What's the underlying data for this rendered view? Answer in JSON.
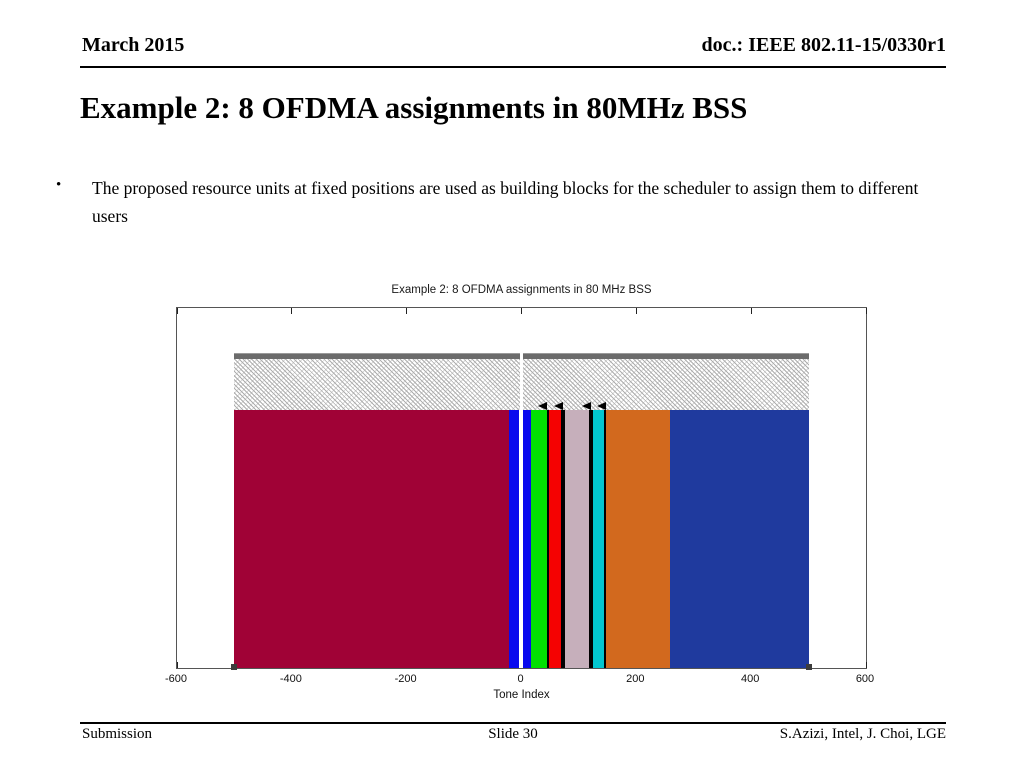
{
  "header": {
    "date": "March 2015",
    "doc": "doc.: IEEE 802.11-15/0330r1"
  },
  "slide_title": "Example 2: 8 OFDMA assignments in 80MHz BSS",
  "bullet": {
    "marker": "•",
    "text": "The proposed resource units at fixed positions are used as building blocks for the scheduler to assign them to different users"
  },
  "footer": {
    "left": "Submission",
    "center": "Slide 30",
    "right": "S.Azizi, Intel, J. Choi, LGE"
  },
  "chart_data": {
    "type": "bar",
    "title": "Example 2: 8 OFDMA assignments in 80 MHz BSS",
    "xlabel": "Tone Index",
    "xlim": [
      -600,
      600
    ],
    "xticks": [
      -600,
      -400,
      -200,
      0,
      200,
      400,
      600
    ],
    "band": {
      "start": -500,
      "end": 500
    },
    "dc_gap_tone": 0,
    "segments": [
      {
        "name": "assignment-1",
        "color": "#A00236",
        "start": -500,
        "end": -22,
        "black_border": false
      },
      {
        "name": "assignment-2a",
        "color": "#0909EE",
        "start": -22,
        "end": -4,
        "black_border": false
      },
      {
        "name": "assignment-2b",
        "color": "#0909EE",
        "start": 2,
        "end": 16,
        "black_border": false
      },
      {
        "name": "assignment-3",
        "color": "#02E002",
        "start": 16,
        "end": 45,
        "black_border": false
      },
      {
        "name": "assignment-4",
        "color": "#F50202",
        "start": 45,
        "end": 73,
        "black_border": true
      },
      {
        "name": "assignment-5",
        "color": "#C6AFBB",
        "start": 73,
        "end": 121,
        "black_border": true
      },
      {
        "name": "assignment-6",
        "color": "#02C6CF",
        "start": 121,
        "end": 147,
        "black_border": true
      },
      {
        "name": "assignment-7",
        "color": "#D2691E",
        "start": 147,
        "end": 258,
        "black_border": false
      },
      {
        "name": "assignment-8",
        "color": "#1F3A9E",
        "start": 258,
        "end": 500,
        "black_border": false
      }
    ],
    "arrow_tones": [
      45,
      73,
      121,
      147
    ],
    "cap_bar_color": "#6b6b6b",
    "hatch_region": {
      "start": -500,
      "end": 500,
      "style": "diagonal-hatch"
    },
    "baseline_marker_tones": [
      -500,
      500
    ]
  }
}
